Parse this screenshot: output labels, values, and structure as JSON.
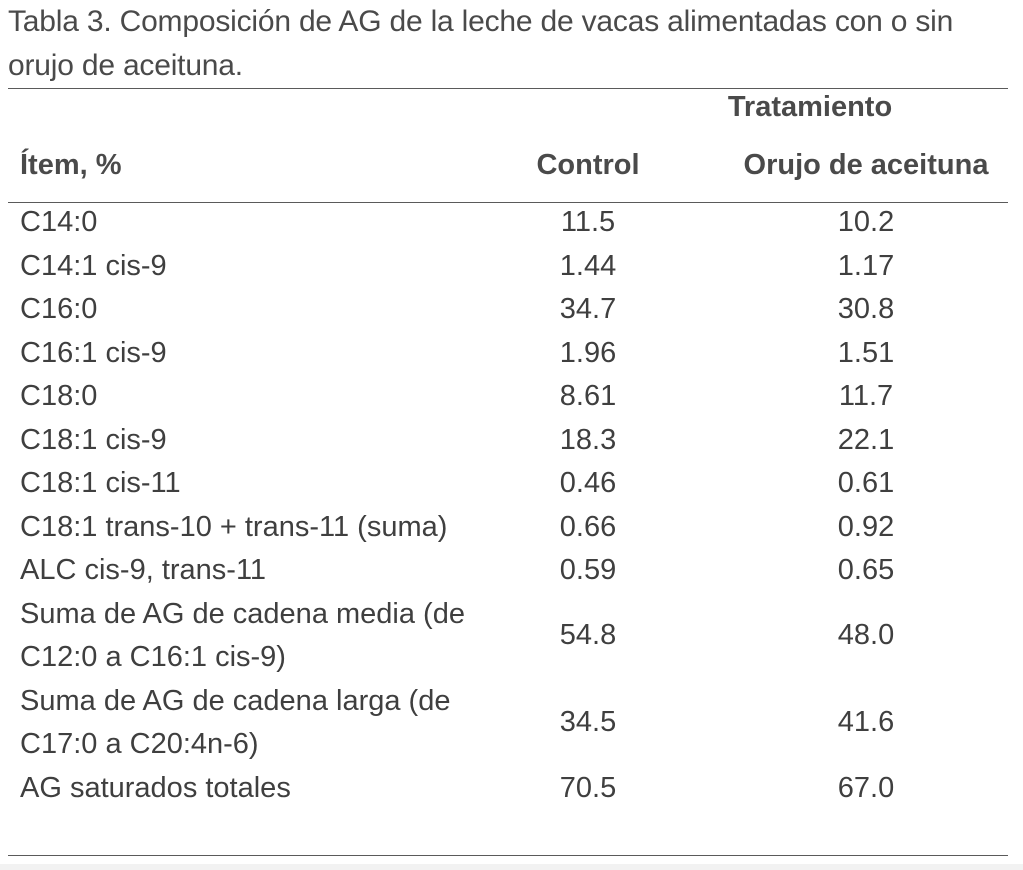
{
  "caption": "Tabla 3. Composición de AG de la leche de vacas alimentadas con o sin orujo de aceituna.",
  "table": {
    "group_header": "Tratamiento",
    "headers": {
      "item": "Ítem, %",
      "control": "Control",
      "orujo": "Orujo de aceituna"
    },
    "rows": [
      {
        "item": "C14:0",
        "control": "11.5",
        "orujo": "10.2"
      },
      {
        "item": "C14:1 cis-9",
        "control": "1.44",
        "orujo": "1.17"
      },
      {
        "item": "C16:0",
        "control": "34.7",
        "orujo": "30.8"
      },
      {
        "item": "C16:1 cis-9",
        "control": "1.96",
        "orujo": "1.51"
      },
      {
        "item": "C18:0",
        "control": "8.61",
        "orujo": "11.7"
      },
      {
        "item": "C18:1 cis-9",
        "control": "18.3",
        "orujo": "22.1"
      },
      {
        "item": "C18:1 cis-11",
        "control": "0.46",
        "orujo": "0.61"
      },
      {
        "item": "C18:1 trans-10 + trans-11 (suma)",
        "control": "0.66",
        "orujo": "0.92"
      },
      {
        "item": "ALC cis-9, trans-11",
        "control": "0.59",
        "orujo": "0.65"
      },
      {
        "item": "Suma de AG de cadena media (de C12:0 a C16:1 cis-9)",
        "control": "54.8",
        "orujo": "48.0"
      },
      {
        "item": "Suma de AG de cadena larga (de C17:0 a C20:4n-6)",
        "control": "34.5",
        "orujo": "41.6"
      },
      {
        "item": "AG saturados totales",
        "control": "70.5",
        "orujo": "67.0"
      }
    ]
  }
}
